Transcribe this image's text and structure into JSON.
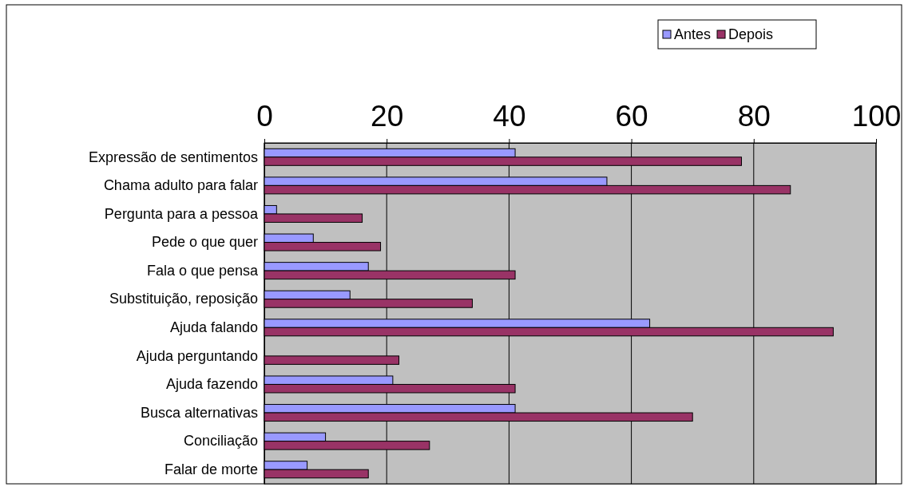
{
  "chart_data": {
    "type": "bar",
    "orientation": "horizontal",
    "categories": [
      "Expressão de sentimentos",
      "Chama adulto para falar",
      "Pergunta para a pessoa",
      "Pede o que quer",
      "Fala o que pensa",
      "Substituição, reposição",
      "Ajuda falando",
      "Ajuda perguntando",
      "Ajuda fazendo",
      "Busca alternativas",
      "Conciliação",
      "Falar de morte"
    ],
    "series": [
      {
        "name": "Antes",
        "color": "#9999ff",
        "values": [
          41,
          56,
          2,
          8,
          17,
          14,
          63,
          0,
          21,
          41,
          10,
          7
        ]
      },
      {
        "name": "Depois",
        "color": "#993366",
        "values": [
          78,
          86,
          16,
          19,
          41,
          34,
          93,
          22,
          41,
          70,
          27,
          17
        ]
      }
    ],
    "xlim": [
      0,
      100
    ],
    "xticks": [
      0,
      20,
      40,
      60,
      80,
      100
    ],
    "grid": "x",
    "legend": "top right"
  }
}
